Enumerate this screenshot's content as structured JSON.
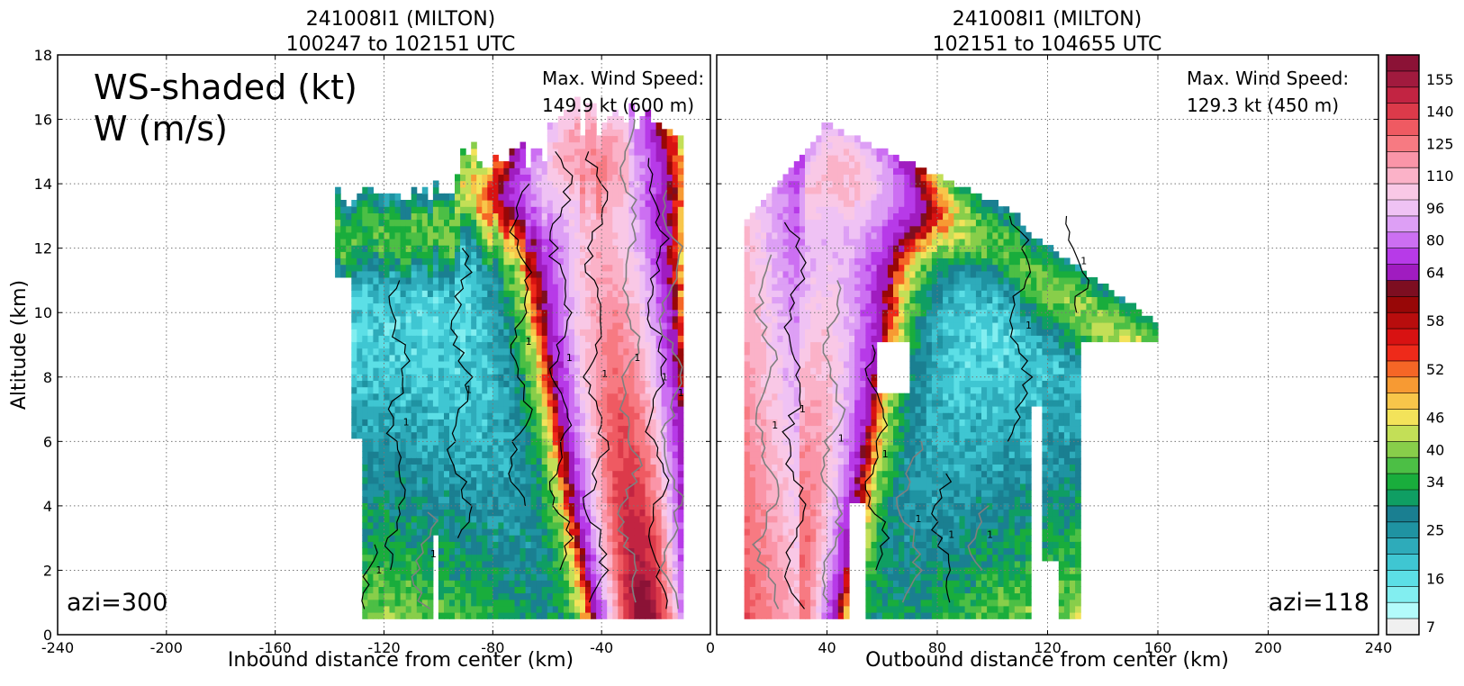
{
  "colors": {
    "speed_bands": [
      {
        "lo": 7,
        "color": "#f0f0f0"
      },
      {
        "lo": 10,
        "color": "#b3fbfb"
      },
      {
        "lo": 13,
        "color": "#82eef0"
      },
      {
        "lo": 16,
        "color": "#5cdfe6"
      },
      {
        "lo": 19,
        "color": "#3fc6d2"
      },
      {
        "lo": 22,
        "color": "#2eabba"
      },
      {
        "lo": 25,
        "color": "#1f93a2"
      },
      {
        "lo": 28,
        "color": "#1a7f91"
      },
      {
        "lo": 31,
        "color": "#0f9e63"
      },
      {
        "lo": 34,
        "color": "#19ad3c"
      },
      {
        "lo": 37,
        "color": "#4cbf45"
      },
      {
        "lo": 40,
        "color": "#88ce4a"
      },
      {
        "lo": 43,
        "color": "#c3df57"
      },
      {
        "lo": 46,
        "color": "#f3e35a"
      },
      {
        "lo": 48,
        "color": "#f8c64a"
      },
      {
        "lo": 50,
        "color": "#f79a33"
      },
      {
        "lo": 52,
        "color": "#f56626"
      },
      {
        "lo": 54,
        "color": "#ee2a1a"
      },
      {
        "lo": 56,
        "color": "#d81212"
      },
      {
        "lo": 58,
        "color": "#b80d0d"
      },
      {
        "lo": 60,
        "color": "#980707"
      },
      {
        "lo": 62,
        "color": "#7d0e21"
      },
      {
        "lo": 64,
        "color": "#a01cc0"
      },
      {
        "lo": 72,
        "color": "#b73ae8"
      },
      {
        "lo": 80,
        "color": "#cc6ff2"
      },
      {
        "lo": 88,
        "color": "#dd9ff5"
      },
      {
        "lo": 96,
        "color": "#efc2f4"
      },
      {
        "lo": 103,
        "color": "#f9c8e6"
      },
      {
        "lo": 110,
        "color": "#fbb2c8"
      },
      {
        "lo": 118,
        "color": "#fa95a8"
      },
      {
        "lo": 125,
        "color": "#f77a82"
      },
      {
        "lo": 133,
        "color": "#ef5a62"
      },
      {
        "lo": 140,
        "color": "#dc3a4a"
      },
      {
        "lo": 148,
        "color": "#c22442"
      },
      {
        "lo": 155,
        "color": "#a11a3e"
      },
      {
        "lo": 160,
        "color": "#8b1236"
      }
    ],
    "contour_negative": "#000000",
    "contour_positive": "#7f7f7f"
  },
  "chart_data": [
    {
      "type": "heatmap",
      "title_line1": "241008I1 (MILTON)",
      "title_line2": "100247 to 102151 UTC",
      "xlabel": "Inbound distance from center (km)",
      "ylabel": "Altitude (km)",
      "xlim": [
        -240,
        0
      ],
      "ylim": [
        0,
        18
      ],
      "xticks": [
        "-240",
        "-200",
        "-160",
        "-120",
        "-80",
        "-40",
        "0"
      ],
      "xtick_values": [
        -240,
        -200,
        -160,
        -120,
        -80,
        -40,
        0
      ],
      "yticks": [
        "0",
        "2",
        "4",
        "6",
        "8",
        "10",
        "12",
        "14",
        "16",
        "18"
      ],
      "ytick_values": [
        0,
        2,
        4,
        6,
        8,
        10,
        12,
        14,
        16,
        18
      ],
      "grid": true,
      "overlay_title_line1": "WS-shaded (kt)",
      "overlay_title_line2": "W (m/s)",
      "max_label_line1": "Max. Wind Speed:",
      "max_label_line2": "149.9 kt (600 m)",
      "azimuth_label": "azi=300",
      "data_extent_x": [
        -138,
        -10
      ],
      "data_extent_y": [
        0.5,
        16.6
      ],
      "eyewall_center_x": -24,
      "contour_label": "1"
    },
    {
      "type": "heatmap",
      "title_line1": "241008I1 (MILTON)",
      "title_line2": "102151 to 104655 UTC",
      "xlabel": "Outbound distance from center (km)",
      "xlim": [
        0,
        240
      ],
      "ylim": [
        0,
        18
      ],
      "xticks": [
        "0",
        "40",
        "80",
        "120",
        "160",
        "200",
        "240"
      ],
      "xtick_values": [
        0,
        40,
        80,
        120,
        160,
        200,
        240
      ],
      "grid": true,
      "max_label_line1": "Max. Wind Speed:",
      "max_label_line2": "129.3 kt (450 m)",
      "azimuth_label": "azi=118",
      "data_extent_x": [
        10,
        160
      ],
      "data_extent_y": [
        0.5,
        16.2
      ],
      "eyewall_center_x": 24,
      "contour_label": "1"
    }
  ],
  "colorbar": {
    "tick_labels": [
      "7",
      "16",
      "25",
      "34",
      "40",
      "46",
      "52",
      "58",
      "64",
      "80",
      "96",
      "110",
      "125",
      "140",
      "155"
    ],
    "tick_values": [
      7,
      16,
      25,
      34,
      40,
      46,
      52,
      58,
      64,
      80,
      96,
      110,
      125,
      140,
      155
    ]
  }
}
